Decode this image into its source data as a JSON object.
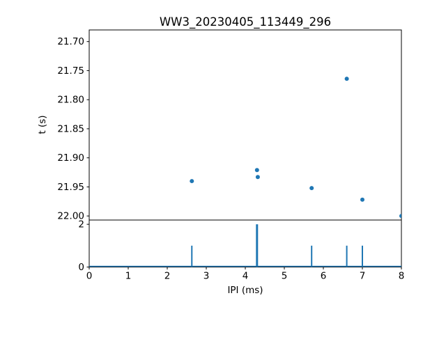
{
  "figure": {
    "title": "WW3_20230405_113449_296",
    "background": "#ffffff",
    "accent": "#1f77b4"
  },
  "chart_data": [
    {
      "type": "scatter",
      "title": "WW3_20230405_113449_296",
      "xlabel": "",
      "ylabel": "t (s)",
      "xlim": [
        0,
        8
      ],
      "ylim": [
        21.68,
        22.007
      ],
      "y_inverted": true,
      "yticks": [
        21.7,
        21.75,
        21.8,
        21.85,
        21.9,
        21.95,
        22.0
      ],
      "ytick_labels": [
        "21.70",
        "21.75",
        "21.80",
        "21.85",
        "21.90",
        "21.95",
        "22.00"
      ],
      "marker_color": "#1f77b4",
      "points": [
        {
          "x": 2.63,
          "y": 21.94
        },
        {
          "x": 4.3,
          "y": 21.921
        },
        {
          "x": 4.32,
          "y": 21.933
        },
        {
          "x": 5.7,
          "y": 21.952
        },
        {
          "x": 6.6,
          "y": 21.764
        },
        {
          "x": 7.0,
          "y": 21.972
        },
        {
          "x": 8.0,
          "y": 22.0
        }
      ]
    },
    {
      "type": "bar",
      "title": "",
      "xlabel": "IPI (ms)",
      "ylabel": "",
      "xlim": [
        0,
        8
      ],
      "ylim": [
        0,
        2.2
      ],
      "xticks": [
        0,
        1,
        2,
        3,
        4,
        5,
        6,
        7,
        8
      ],
      "xtick_labels": [
        "0",
        "1",
        "2",
        "3",
        "4",
        "5",
        "6",
        "7",
        "8"
      ],
      "yticks": [
        0,
        2
      ],
      "ytick_labels": [
        "0",
        "2"
      ],
      "color": "#1f77b4",
      "baseline": 0,
      "bars": [
        {
          "x": 2.63,
          "height": 1
        },
        {
          "x": 4.3,
          "height": 2
        },
        {
          "x": 5.7,
          "height": 1
        },
        {
          "x": 6.6,
          "height": 1
        },
        {
          "x": 7.0,
          "height": 1
        }
      ]
    }
  ]
}
